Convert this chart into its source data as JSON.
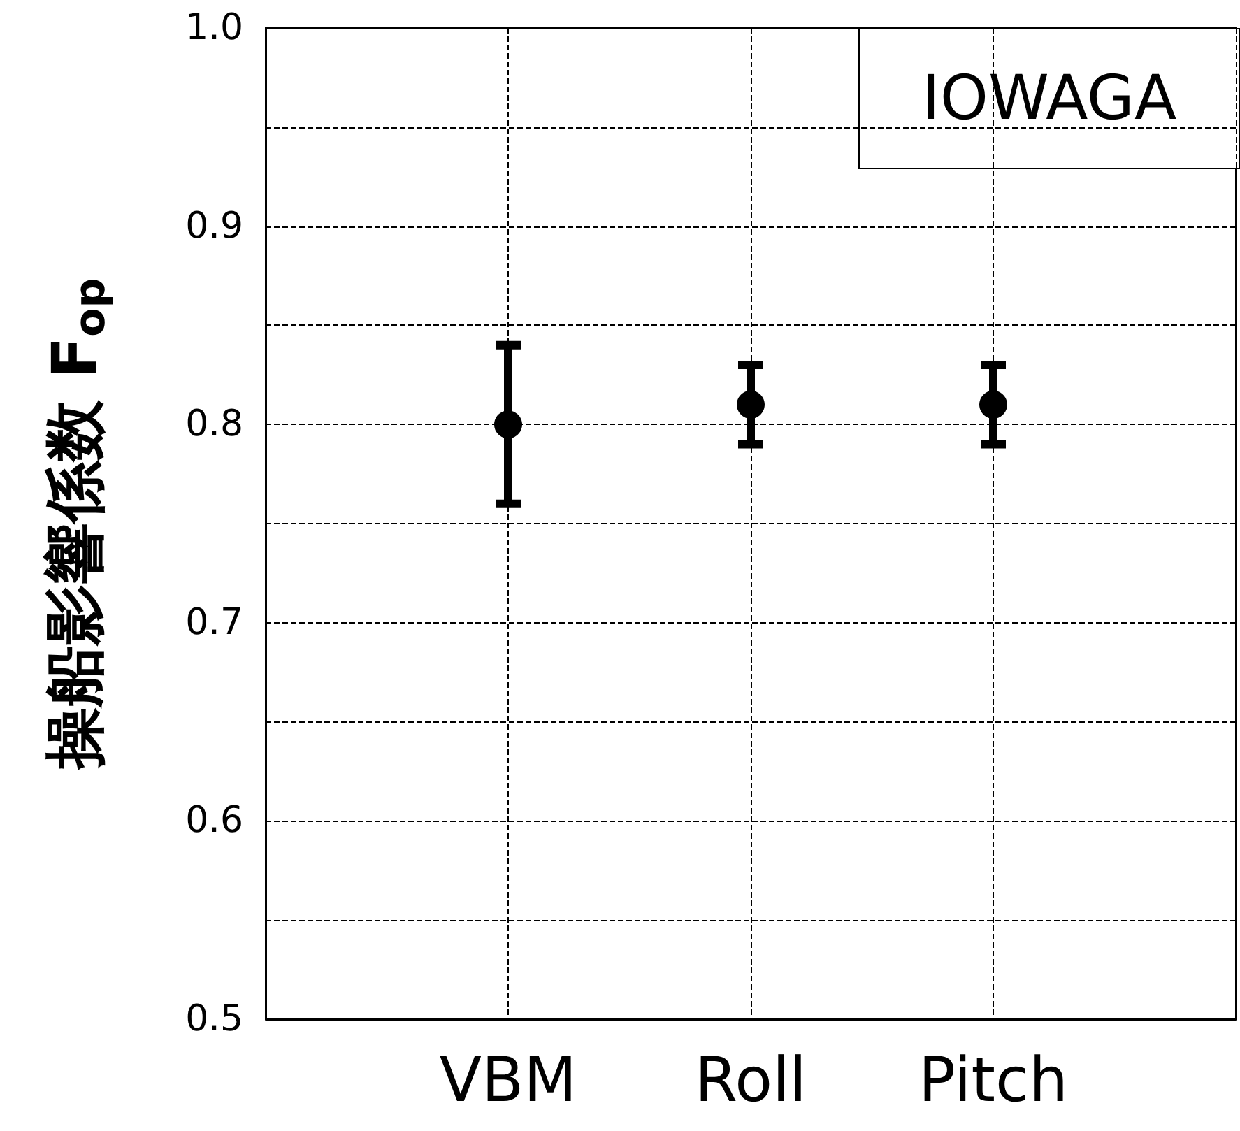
{
  "chart_data": {
    "type": "scatter",
    "ylabel": "操船影響係数 F$_{op}$",
    "categories": [
      null,
      "VBM",
      "Roll",
      "Pitch",
      null
    ],
    "series": [
      {
        "color": "#000000",
        "values": [
          null,
          0.8,
          0.81,
          0.81,
          null
        ],
        "errors": [
          null,
          0.04,
          0.02,
          0.02,
          null
        ]
      }
    ],
    "ylim": [
      0.5,
      1.0
    ],
    "yticks": [
      0.5,
      {
        "value": 0.55,
        "label": null
      },
      0.6,
      {
        "value": 0.65,
        "label": null
      },
      0.7,
      {
        "value": 0.75,
        "label": null
      },
      0.8,
      {
        "value": 0.85,
        "label": null
      },
      0.9,
      {
        "value": 0.95,
        "label": null
      },
      {
        "value": 1,
        "label": "1.0"
      }
    ],
    "grid": true,
    "marker": "circle",
    "annotations": [
      "IOWAGA"
    ]
  }
}
